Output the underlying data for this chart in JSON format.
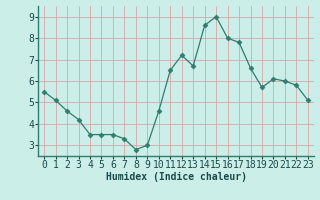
{
  "x": [
    0,
    1,
    2,
    3,
    4,
    5,
    6,
    7,
    8,
    9,
    10,
    11,
    12,
    13,
    14,
    15,
    16,
    17,
    18,
    19,
    20,
    21,
    22,
    23
  ],
  "y": [
    5.5,
    5.1,
    4.6,
    4.2,
    3.5,
    3.5,
    3.5,
    3.3,
    2.8,
    3.0,
    4.6,
    6.5,
    7.2,
    6.7,
    8.6,
    9.0,
    8.0,
    7.8,
    6.6,
    5.7,
    6.1,
    6.0,
    5.8,
    5.1
  ],
  "line_color": "#2e7d6e",
  "marker": "D",
  "marker_size": 2.5,
  "bg_color": "#cceee8",
  "grid_color": "#d4a8a8",
  "xlabel": "Humidex (Indice chaleur)",
  "xlabel_fontsize": 7,
  "tick_fontsize": 7,
  "ylim": [
    2.5,
    9.5
  ],
  "xlim": [
    -0.5,
    23.5
  ],
  "yticks": [
    3,
    4,
    5,
    6,
    7,
    8,
    9
  ],
  "xticks": [
    0,
    1,
    2,
    3,
    4,
    5,
    6,
    7,
    8,
    9,
    10,
    11,
    12,
    13,
    14,
    15,
    16,
    17,
    18,
    19,
    20,
    21,
    22,
    23
  ],
  "spine_color": "#2e7d6e",
  "text_color": "#1a4a4a"
}
